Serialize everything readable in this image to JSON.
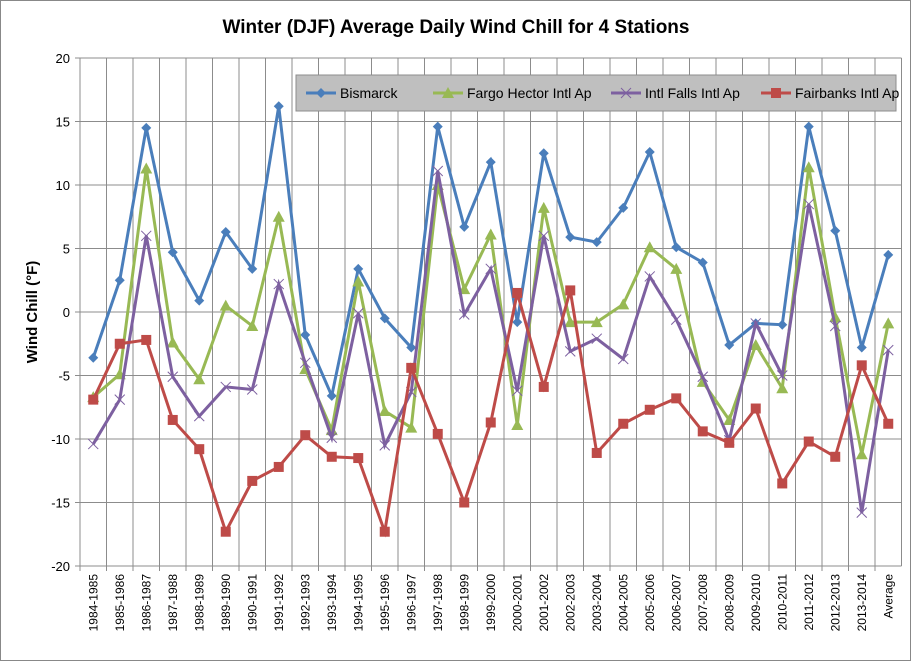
{
  "chart_data": {
    "type": "line",
    "title": "Winter (DJF) Average Daily Wind Chill for 4 Stations",
    "xlabel": "",
    "ylabel": "Wind Chill (°F)",
    "ylim": [
      -20,
      20
    ],
    "yticks": [
      20,
      15,
      10,
      5,
      0,
      -5,
      -10,
      -15,
      -20
    ],
    "grid": true,
    "legend_placement": "top-right",
    "categories": [
      "1984-1985",
      "1985-1986",
      "1986-1987",
      "1987-1988",
      "1988-1989",
      "1989-1990",
      "1990-1991",
      "1991-1992",
      "1992-1993",
      "1993-1994",
      "1994-1995",
      "1995-1996",
      "1996-1997",
      "1997-1998",
      "1998-1999",
      "1999-2000",
      "2000-2001",
      "2001-2002",
      "2002-2003",
      "2003-2004",
      "2004-2005",
      "2005-2006",
      "2006-2007",
      "2007-2008",
      "2008-2009",
      "2009-2010",
      "2010-2011",
      "2011-2012",
      "2012-2013",
      "2013-2014",
      "Average"
    ],
    "series": [
      {
        "name": "Bismarck",
        "color": "#4a7ebb",
        "marker": "diamond",
        "values": [
          -3.6,
          2.5,
          14.5,
          4.7,
          0.9,
          6.3,
          3.4,
          16.2,
          -1.8,
          -6.6,
          3.4,
          -0.5,
          -2.8,
          14.6,
          6.7,
          11.8,
          -0.8,
          12.5,
          5.9,
          5.5,
          8.2,
          12.6,
          5.1,
          3.9,
          -2.6,
          -0.9,
          -1.0,
          14.6,
          6.4,
          -2.8,
          4.5
        ]
      },
      {
        "name": "Fargo Hector Intl Ap",
        "color": "#98b954",
        "marker": "triangle",
        "values": [
          -6.7,
          -4.9,
          11.3,
          -2.4,
          -5.3,
          0.5,
          -1.1,
          7.5,
          -4.5,
          -9.3,
          2.4,
          -7.8,
          -9.1,
          10.0,
          1.8,
          6.1,
          -8.9,
          8.2,
          -0.8,
          -0.8,
          0.6,
          5.1,
          3.4,
          -5.5,
          -8.5,
          -2.6,
          -6.0,
          11.4,
          -0.4,
          -11.2,
          -0.9
        ]
      },
      {
        "name": "Intl Falls Intl Ap",
        "color": "#7d60a0",
        "marker": "x",
        "values": [
          -10.4,
          -6.9,
          6.0,
          -5.1,
          -8.2,
          -5.9,
          -6.1,
          2.2,
          -4.0,
          -9.9,
          -0.1,
          -10.5,
          -6.3,
          11.1,
          -0.2,
          3.4,
          -6.2,
          6.0,
          -3.1,
          -2.1,
          -3.7,
          2.8,
          -0.6,
          -5.1,
          -10.1,
          -0.9,
          -5.0,
          8.5,
          -1.1,
          -15.8,
          -3.0
        ]
      },
      {
        "name": "Fairbanks Intl Ap",
        "color": "#be4b48",
        "marker": "square",
        "values": [
          -6.9,
          -2.5,
          -2.2,
          -8.5,
          -10.8,
          -17.3,
          -13.3,
          -12.2,
          -9.7,
          -11.4,
          -11.5,
          -17.3,
          -4.4,
          -9.6,
          -15.0,
          -8.7,
          1.5,
          -5.9,
          1.7,
          -11.1,
          -8.8,
          -7.7,
          -6.8,
          -9.4,
          -10.3,
          -7.6,
          -13.5,
          -10.2,
          -11.4,
          -4.2,
          -8.8
        ]
      }
    ]
  }
}
